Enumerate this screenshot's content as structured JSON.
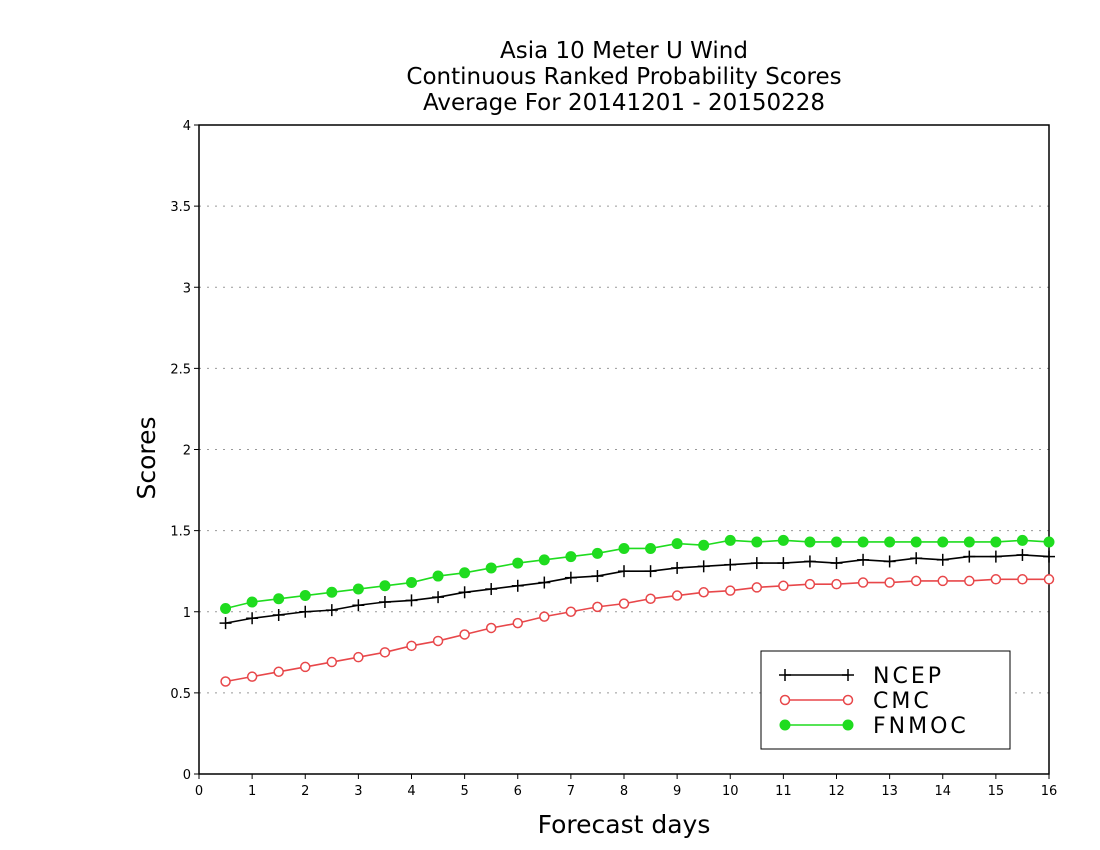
{
  "chart_data": {
    "type": "line",
    "title_lines": [
      "Asia 10 Meter U Wind",
      "Continuous Ranked Probability Scores",
      "Average For 20141201 - 20150228"
    ],
    "xlabel": "Forecast days",
    "ylabel": "Scores",
    "xlim": [
      0,
      16
    ],
    "ylim": [
      0,
      4
    ],
    "x_ticks": [
      "0",
      "1",
      "2",
      "3",
      "4",
      "5",
      "6",
      "7",
      "8",
      "9",
      "10",
      "11",
      "12",
      "13",
      "14",
      "15",
      "16"
    ],
    "y_ticks": [
      "0",
      "0.5",
      "1",
      "1.5",
      "2",
      "2.5",
      "3",
      "3.5",
      "4"
    ],
    "grid": "horizontal dotted",
    "legend_position": "bottom-right",
    "x": [
      0.5,
      1,
      1.5,
      2,
      2.5,
      3,
      3.5,
      4,
      4.5,
      5,
      5.5,
      6,
      6.5,
      7,
      7.5,
      8,
      8.5,
      9,
      9.5,
      10,
      10.5,
      11,
      11.5,
      12,
      12.5,
      13,
      13.5,
      14,
      14.5,
      15,
      15.5,
      16
    ],
    "series": [
      {
        "name": "NCEP",
        "color": "#000000",
        "marker": "plus",
        "values": [
          0.93,
          0.96,
          0.98,
          1.0,
          1.01,
          1.04,
          1.06,
          1.07,
          1.09,
          1.12,
          1.14,
          1.16,
          1.18,
          1.21,
          1.22,
          1.25,
          1.25,
          1.27,
          1.28,
          1.29,
          1.3,
          1.3,
          1.31,
          1.3,
          1.32,
          1.31,
          1.33,
          1.32,
          1.34,
          1.34,
          1.35,
          1.34
        ]
      },
      {
        "name": "CMC",
        "color": "#e8474a",
        "marker": "open-circle",
        "values": [
          0.57,
          0.6,
          0.63,
          0.66,
          0.69,
          0.72,
          0.75,
          0.79,
          0.82,
          0.86,
          0.9,
          0.93,
          0.97,
          1.0,
          1.03,
          1.05,
          1.08,
          1.1,
          1.12,
          1.13,
          1.15,
          1.16,
          1.17,
          1.17,
          1.18,
          1.18,
          1.19,
          1.19,
          1.19,
          1.2,
          1.2,
          1.2
        ]
      },
      {
        "name": "FNMOC",
        "color": "#1fdc1f",
        "marker": "filled-circle",
        "values": [
          1.02,
          1.06,
          1.08,
          1.1,
          1.12,
          1.14,
          1.16,
          1.18,
          1.22,
          1.24,
          1.27,
          1.3,
          1.32,
          1.34,
          1.36,
          1.39,
          1.39,
          1.42,
          1.41,
          1.44,
          1.43,
          1.44,
          1.43,
          1.43,
          1.43,
          1.43,
          1.43,
          1.43,
          1.43,
          1.43,
          1.44,
          1.43
        ]
      }
    ]
  }
}
